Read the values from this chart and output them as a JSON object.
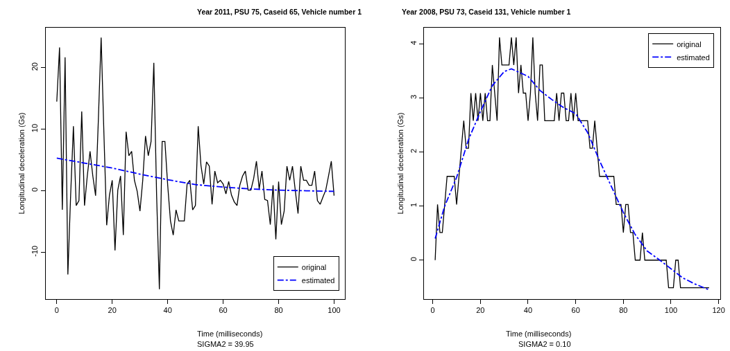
{
  "chart_data": [
    {
      "type": "line",
      "title": "Year 2011, PSU 75, Caseid 65, Vehicle number 1",
      "xlabel": "Time (milliseconds)",
      "ylabel": "Longitudinal deceleration (Gs)",
      "annotations": [
        "SIGMA2 = 39.95"
      ],
      "series": [
        {
          "name": "original",
          "color": "#000000",
          "line_style": "solid",
          "x": [
            0,
            1,
            2,
            3,
            4,
            5,
            6,
            7,
            8,
            9,
            10,
            11,
            12,
            13,
            14,
            15,
            16,
            17,
            18,
            19,
            20,
            21,
            22,
            23,
            24,
            25,
            26,
            27,
            28,
            29,
            30,
            31,
            32,
            33,
            34,
            35,
            36,
            37,
            38,
            39,
            40,
            41,
            42,
            43,
            44,
            45,
            46,
            47,
            48,
            49,
            50,
            51,
            52,
            53,
            54,
            55,
            56,
            57,
            58,
            59,
            60,
            61,
            62,
            63,
            64,
            65,
            66,
            67,
            68,
            69,
            70,
            71,
            72,
            73,
            74,
            75,
            76,
            77,
            78,
            79,
            80,
            81,
            82,
            83,
            84,
            85,
            86,
            87,
            88,
            89,
            90,
            91,
            92,
            93,
            94,
            95,
            96,
            97,
            98,
            99,
            100
          ],
          "values": [
            14.5,
            23.3,
            -3.1,
            21.7,
            -13.6,
            -0.7,
            10.5,
            -2.4,
            -1.6,
            12.9,
            -2.4,
            2.4,
            6.4,
            2.4,
            -0.8,
            11.6,
            24.9,
            9.3,
            -5.6,
            -0.7,
            1.7,
            -9.7,
            0.1,
            2.4,
            -7.2,
            9.6,
            5.7,
            6.4,
            1.7,
            -0.1,
            -3.3,
            1.7,
            8.9,
            5.7,
            8.0,
            20.8,
            -0.7,
            -16.0,
            8.0,
            8.0,
            0.9,
            -4.9,
            -7.2,
            -3.1,
            -4.9,
            -4.9,
            -4.9,
            1.1,
            1.7,
            -3.1,
            -2.4,
            10.5,
            4.1,
            1.1,
            4.7,
            4.0,
            -2.2,
            3.2,
            1.3,
            1.7,
            1.1,
            -0.5,
            1.5,
            -0.7,
            -1.8,
            -2.4,
            0.9,
            2.4,
            3.2,
            0.1,
            0.1,
            2.0,
            4.8,
            0.3,
            3.2,
            -1.4,
            -1.6,
            -5.5,
            0.9,
            -7.9,
            1.5,
            -5.5,
            -3.3,
            4.0,
            1.7,
            4.0,
            0.1,
            -3.7,
            4.0,
            1.7,
            1.7,
            0.9,
            0.9,
            3.2,
            -1.6,
            -2.2,
            -1.0,
            0.1,
            2.4,
            4.8,
            -0.8
          ]
        },
        {
          "name": "estimated",
          "color": "#0000ff",
          "line_style": "dashdot",
          "x": [
            0,
            10,
            20,
            30,
            40,
            50,
            60,
            70,
            80,
            90,
            100
          ],
          "values": [
            5.3,
            4.5,
            3.7,
            2.7,
            1.8,
            1.0,
            0.6,
            0.3,
            0.1,
            0.0,
            -0.1
          ]
        }
      ],
      "xlim": [
        -4,
        104
      ],
      "ylim": [
        -17.6,
        26.5
      ],
      "xticks": [
        0,
        20,
        40,
        60,
        80,
        100
      ],
      "yticks": [
        -10,
        0,
        10,
        20
      ],
      "legend": "bottom right"
    },
    {
      "type": "line",
      "title": "Year 2008, PSU 73, Caseid 131, Vehicle number 1",
      "xlabel": "Time (milliseconds)",
      "ylabel": "Longitudinal deceleration (Gs)",
      "annotations": [
        "SIGMA2 = 0.10"
      ],
      "series": [
        {
          "name": "original",
          "color": "#000000",
          "line_style": "solid",
          "x": [
            1,
            2,
            3,
            4,
            5,
            6,
            7,
            8,
            9,
            10,
            11,
            12,
            13,
            14,
            15,
            16,
            17,
            18,
            19,
            20,
            21,
            22,
            23,
            24,
            25,
            26,
            27,
            28,
            29,
            30,
            31,
            32,
            33,
            34,
            35,
            36,
            37,
            38,
            39,
            40,
            41,
            42,
            43,
            44,
            45,
            46,
            47,
            48,
            49,
            50,
            51,
            52,
            53,
            54,
            55,
            56,
            57,
            58,
            59,
            60,
            61,
            62,
            63,
            64,
            65,
            66,
            67,
            68,
            69,
            70,
            71,
            72,
            73,
            74,
            75,
            76,
            77,
            78,
            79,
            80,
            81,
            82,
            83,
            84,
            85,
            86,
            87,
            88,
            89,
            90,
            91,
            92,
            93,
            94,
            95,
            96,
            97,
            98,
            99,
            100,
            101,
            102,
            103,
            104,
            105,
            106,
            107,
            108,
            109,
            110,
            111,
            112,
            113,
            114,
            115,
            116
          ],
          "values": [
            0,
            1.03,
            0.51,
            0.51,
            1.03,
            1.55,
            1.55,
            1.55,
            1.55,
            1.03,
            1.55,
            2.07,
            2.58,
            2.07,
            2.07,
            3.09,
            2.58,
            3.09,
            2.58,
            3.09,
            2.58,
            3.09,
            2.58,
            2.58,
            3.61,
            3.09,
            2.58,
            4.12,
            3.61,
            3.61,
            3.61,
            3.61,
            4.12,
            3.61,
            4.12,
            3.09,
            3.61,
            3.09,
            3.09,
            2.58,
            3.09,
            4.12,
            3.09,
            2.58,
            3.61,
            3.61,
            2.58,
            2.58,
            2.58,
            2.58,
            2.58,
            3.09,
            2.58,
            3.09,
            3.09,
            2.58,
            2.58,
            3.09,
            2.58,
            3.09,
            2.58,
            2.58,
            2.58,
            2.58,
            2.58,
            2.07,
            2.07,
            2.58,
            2.07,
            1.55,
            1.55,
            1.55,
            1.55,
            1.55,
            1.55,
            1.55,
            1.03,
            1.03,
            1.03,
            0.51,
            1.03,
            1.03,
            0.51,
            0.51,
            0,
            0,
            0,
            0.51,
            0,
            0,
            0,
            0,
            0,
            0,
            0,
            0,
            0,
            0,
            -0.51,
            -0.51,
            -0.51,
            0,
            0,
            -0.51,
            -0.51,
            -0.51,
            -0.51,
            -0.51,
            -0.51,
            -0.51,
            -0.51,
            -0.51,
            -0.51,
            -0.51,
            -0.51,
            -0.51
          ]
        },
        {
          "name": "estimated",
          "color": "#0000ff",
          "line_style": "dashdot",
          "x": [
            1,
            5,
            10,
            15,
            20,
            25,
            30,
            33,
            40,
            45,
            50,
            55,
            60,
            65,
            70,
            75,
            80,
            85,
            90,
            95,
            100,
            105,
            110,
            116
          ],
          "values": [
            0.4,
            1.0,
            1.53,
            2.23,
            2.75,
            3.23,
            3.49,
            3.54,
            3.4,
            3.14,
            2.97,
            2.82,
            2.71,
            2.36,
            1.84,
            1.36,
            0.88,
            0.47,
            0.17,
            0.01,
            -0.16,
            -0.33,
            -0.44,
            -0.55
          ]
        }
      ],
      "xlim": [
        -3.6,
        120.6
      ],
      "ylim": [
        -0.72,
        4.3
      ],
      "xticks": [
        0,
        20,
        40,
        60,
        80,
        100,
        120
      ],
      "yticks": [
        0,
        1,
        2,
        3,
        4
      ],
      "legend": "top right"
    }
  ]
}
